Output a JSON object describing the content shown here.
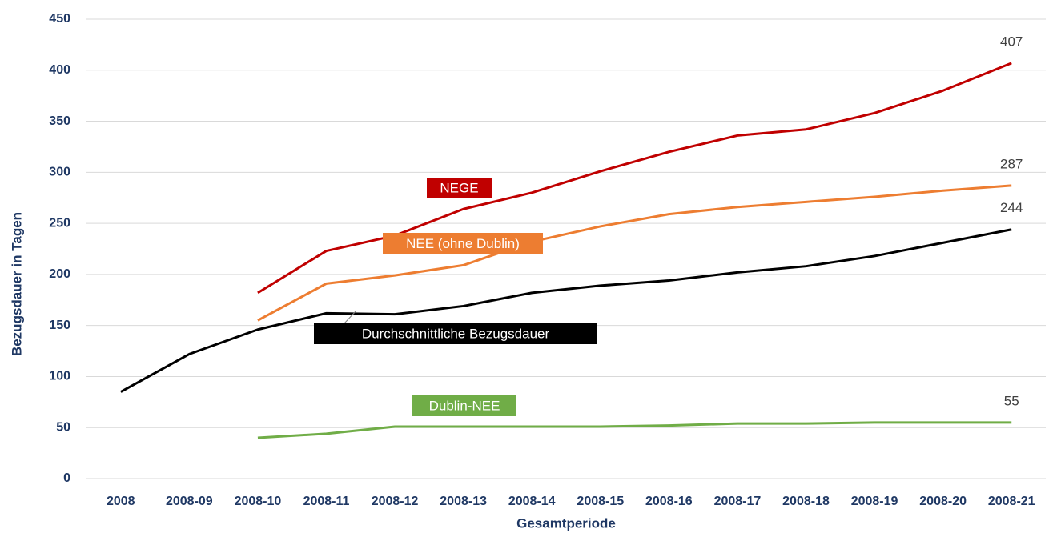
{
  "chart_data": {
    "type": "line",
    "x_label": "Gesamtperiode",
    "y_label": "Bezugsdauer in Tagen",
    "categories": [
      "2008",
      "2008-09",
      "2008-10",
      "2008-11",
      "2008-12",
      "2008-13",
      "2008-14",
      "2008-15",
      "2008-16",
      "2008-17",
      "2008-18",
      "2008-19",
      "2008-20",
      "2008-21"
    ],
    "series": [
      {
        "name": "NEGE",
        "color": "#c00000",
        "values": [
          null,
          null,
          182,
          223,
          238,
          264,
          280,
          301,
          320,
          336,
          342,
          358,
          380,
          407
        ]
      },
      {
        "name": "NEE (ohne Dublin)",
        "color": "#ed7d31",
        "values": [
          null,
          null,
          155,
          191,
          199,
          209,
          232,
          247,
          259,
          266,
          271,
          276,
          282,
          287
        ]
      },
      {
        "name": "Durchschnittliche  Bezugsdauer",
        "color": "#000000",
        "values": [
          85,
          122,
          146,
          162,
          161,
          169,
          182,
          189,
          194,
          202,
          208,
          218,
          231,
          244
        ]
      },
      {
        "name": "Dublin-NEE",
        "color": "#70ad47",
        "values": [
          null,
          null,
          40,
          44,
          51,
          51,
          51,
          51,
          52,
          54,
          54,
          55,
          55,
          55
        ]
      }
    ],
    "ylim": [
      0,
      450
    ],
    "yticks": [
      0,
      50,
      100,
      150,
      200,
      250,
      300,
      350,
      400,
      450
    ],
    "grid": true
  }
}
